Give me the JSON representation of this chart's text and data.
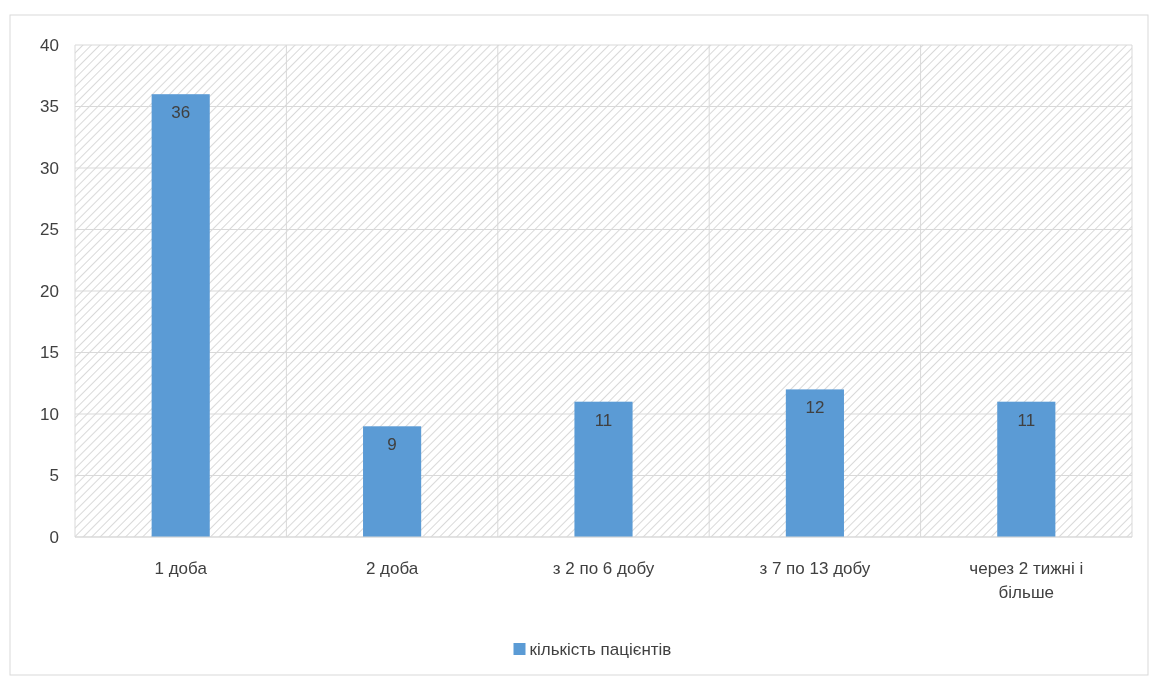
{
  "chart_data": {
    "type": "bar",
    "categories": [
      "1 доба",
      "2 доба",
      "з 2 по 6 добу",
      "з 7 по 13 добу",
      "через 2 тижні і більше"
    ],
    "series": [
      {
        "name": "кількість пацієнтів",
        "color": "#5b9bd5",
        "values": [
          36,
          9,
          11,
          12,
          11
        ]
      }
    ],
    "ylim": [
      0,
      40
    ],
    "yticks": [
      0,
      5,
      10,
      15,
      20,
      25,
      30,
      35,
      40
    ],
    "grid": true,
    "legend": "bottom",
    "data_labels": true
  }
}
